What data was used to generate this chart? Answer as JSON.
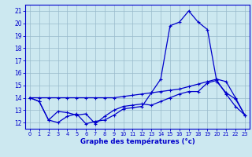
{
  "xlabel": "Graphe des températures (°c)",
  "x": [
    0,
    1,
    2,
    3,
    4,
    5,
    6,
    7,
    8,
    9,
    10,
    11,
    12,
    13,
    14,
    15,
    16,
    17,
    18,
    19,
    20,
    21,
    22,
    23
  ],
  "line1": [
    14.0,
    13.7,
    12.2,
    12.0,
    12.5,
    12.7,
    11.9,
    12.1,
    12.2,
    12.6,
    13.1,
    13.2,
    13.3,
    14.4,
    15.5,
    19.8,
    20.1,
    21.0,
    20.1,
    19.5,
    15.3,
    14.4,
    13.9,
    12.6
  ],
  "line2": [
    14.0,
    13.7,
    12.2,
    12.9,
    12.8,
    12.6,
    12.7,
    11.9,
    12.5,
    13.0,
    13.3,
    13.4,
    13.5,
    13.4,
    13.7,
    14.0,
    14.3,
    14.5,
    14.5,
    15.2,
    15.4,
    14.3,
    13.3,
    12.6
  ],
  "line3": [
    14.0,
    14.0,
    14.0,
    14.0,
    14.0,
    14.0,
    14.0,
    14.0,
    14.0,
    14.0,
    14.1,
    14.2,
    14.3,
    14.4,
    14.5,
    14.6,
    14.7,
    14.9,
    15.1,
    15.3,
    15.5,
    15.3,
    14.0,
    12.6
  ],
  "ylim": [
    11.5,
    21.5
  ],
  "yticks": [
    12,
    13,
    14,
    15,
    16,
    17,
    18,
    19,
    20,
    21
  ],
  "xticks": [
    0,
    1,
    2,
    3,
    4,
    5,
    6,
    7,
    8,
    9,
    10,
    11,
    12,
    13,
    14,
    15,
    16,
    17,
    18,
    19,
    20,
    21,
    22,
    23
  ],
  "line_color": "#0000cc",
  "bg_color": "#cce8f0",
  "grid_color": "#99bbcc"
}
